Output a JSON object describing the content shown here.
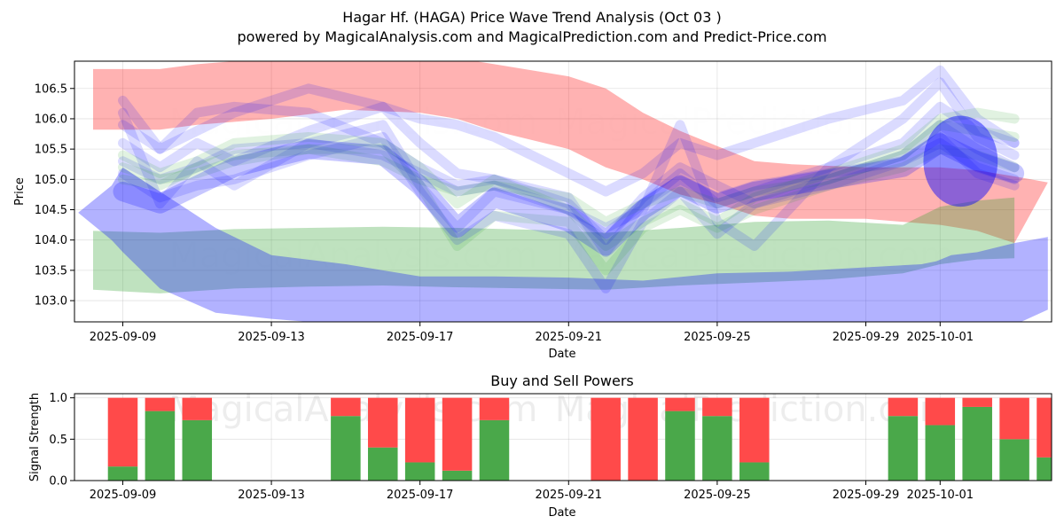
{
  "title_line1": "Hagar Hf. (HAGA) Price Wave Trend Analysis (Oct 03 )",
  "title_line2": "powered by MagicalAnalysis.com and MagicalPrediction.com and Predict-Price.com",
  "watermarks": [
    "MagicalAnalysis.com",
    "MagicalPrediction.com"
  ],
  "colors": {
    "green": "#2ca02c",
    "red": "#ff0000",
    "blue": "#0000ff",
    "buy": "#4aa84a",
    "sell": "#ff4a4a"
  },
  "chart_data": [
    {
      "type": "area",
      "title": "",
      "xlabel": "Date",
      "ylabel": "Price",
      "ylim": [
        102.65,
        106.95
      ],
      "xlim": [
        -1.3,
        25.0
      ],
      "x_tick_labels": [
        "2025-09-09",
        "2025-09-13",
        "2025-09-17",
        "2025-09-21",
        "2025-09-25",
        "2025-09-29",
        "2025-10-01"
      ],
      "x_tick_positions": [
        0,
        4,
        8,
        12,
        16,
        20,
        22
      ],
      "y_tick_labels": [
        "103.0",
        "103.5",
        "104.0",
        "104.5",
        "105.0",
        "105.5",
        "106.0",
        "106.5"
      ],
      "y_ticks": [
        103.0,
        103.5,
        104.0,
        104.5,
        105.0,
        105.5,
        106.0,
        106.5
      ],
      "grid": true,
      "bands": [
        {
          "name": "red-wave",
          "color": "red",
          "opacity": 0.3,
          "x": [
            -0.8,
            1,
            2,
            4,
            6,
            8,
            9,
            10,
            12,
            13,
            14,
            15,
            16,
            17,
            18,
            20,
            22,
            23.0,
            24.0,
            24.9
          ],
          "upper": [
            106.82,
            106.82,
            106.9,
            107.0,
            107.0,
            107.0,
            107.0,
            106.9,
            106.7,
            106.5,
            106.1,
            105.8,
            105.55,
            105.3,
            105.25,
            105.2,
            105.2,
            105.15,
            105.05,
            104.95
          ],
          "lower": [
            105.82,
            105.82,
            105.9,
            106.0,
            106.15,
            106.1,
            106.0,
            105.8,
            105.5,
            105.2,
            105.0,
            104.75,
            104.6,
            104.4,
            104.35,
            104.35,
            104.25,
            104.15,
            103.95,
            null
          ]
        },
        {
          "name": "green-wave",
          "color": "green",
          "opacity": 0.3,
          "x": [
            -0.8,
            1,
            3,
            5,
            7,
            9,
            11,
            13,
            15,
            17,
            19,
            21,
            22,
            23,
            24
          ],
          "upper": [
            104.15,
            104.12,
            104.18,
            104.2,
            104.22,
            104.2,
            104.17,
            104.12,
            104.2,
            104.3,
            104.32,
            104.25,
            104.55,
            104.65,
            104.7
          ],
          "lower": [
            103.18,
            103.12,
            103.2,
            103.23,
            103.25,
            103.22,
            103.2,
            103.18,
            103.25,
            103.3,
            103.35,
            103.45,
            103.6,
            103.68,
            103.7
          ]
        },
        {
          "name": "blue-wave",
          "color": "blue",
          "opacity": 0.3,
          "x": [
            -1.2,
            -0.3,
            0.0,
            1.0,
            2.5,
            4.0,
            6.0,
            8.0,
            10.0,
            12.0,
            14.0,
            16.0,
            18.0,
            20.0,
            21.5,
            21.9,
            22.3,
            23.0,
            24.0,
            24.9
          ],
          "upper": [
            104.45,
            104.9,
            105.2,
            104.8,
            104.2,
            103.75,
            103.6,
            103.4,
            103.4,
            103.38,
            103.33,
            103.45,
            103.48,
            103.55,
            103.6,
            103.65,
            103.75,
            103.8,
            103.95,
            104.05
          ],
          "lower": [
            104.45,
            104.0,
            103.8,
            103.2,
            102.8,
            102.7,
            102.6,
            102.6,
            102.6,
            102.6,
            102.6,
            102.6,
            102.6,
            102.6,
            102.6,
            102.6,
            102.6,
            102.6,
            102.6,
            102.85
          ]
        }
      ],
      "lines": [
        {
          "color": "blue",
          "width": 11,
          "opacity": 0.14,
          "x": [
            0,
            1,
            2,
            3,
            5,
            7,
            8,
            9,
            10,
            12,
            13,
            14,
            15,
            16,
            17,
            19,
            21,
            22,
            23,
            24
          ],
          "y": [
            106.3,
            105.5,
            105.8,
            106.1,
            106.5,
            106.2,
            106.0,
            105.9,
            105.7,
            105.1,
            104.8,
            105.1,
            105.6,
            105.4,
            105.6,
            106.0,
            106.3,
            106.8,
            106.0,
            105.6
          ]
        },
        {
          "color": "blue",
          "width": 11,
          "opacity": 0.14,
          "x": [
            0,
            1,
            2,
            3,
            5,
            7,
            8,
            9,
            10,
            12,
            13,
            14,
            15,
            16,
            17,
            19,
            21,
            22,
            23,
            24
          ],
          "y": [
            106.1,
            104.6,
            105.3,
            104.9,
            105.6,
            105.9,
            104.9,
            104.2,
            104.8,
            104.5,
            104.2,
            104.5,
            105.9,
            104.3,
            103.9,
            105.2,
            106.0,
            106.6,
            105.7,
            105.4
          ]
        },
        {
          "color": "blue",
          "width": 11,
          "opacity": 0.14,
          "x": [
            0,
            1,
            2,
            3,
            5,
            7,
            8,
            9,
            10,
            12,
            13,
            14,
            15,
            16,
            17,
            19,
            21,
            22,
            23,
            24
          ],
          "y": [
            105.6,
            105.2,
            105.6,
            105.3,
            105.8,
            106.2,
            105.6,
            105.1,
            105.0,
            104.6,
            104.0,
            104.7,
            105.2,
            104.9,
            104.6,
            104.9,
            105.3,
            105.7,
            105.1,
            104.9
          ]
        },
        {
          "color": "blue",
          "width": 11,
          "opacity": 0.14,
          "x": [
            0,
            1,
            2,
            3,
            5,
            7,
            8,
            9,
            10,
            12,
            13,
            14,
            15,
            16,
            17,
            19,
            21,
            22,
            23,
            24
          ],
          "y": [
            105.3,
            105.0,
            105.2,
            105.5,
            105.6,
            105.4,
            105.1,
            104.8,
            104.9,
            104.5,
            104.1,
            104.6,
            105.0,
            104.7,
            104.9,
            105.1,
            105.3,
            105.6,
            105.2,
            105.0
          ]
        },
        {
          "color": "blue",
          "width": 11,
          "opacity": 0.14,
          "x": [
            0,
            1,
            2,
            3,
            5,
            7,
            8,
            9,
            10,
            12,
            13,
            14,
            15,
            16,
            17,
            19,
            21,
            22,
            23,
            24
          ],
          "y": [
            105.1,
            104.7,
            104.9,
            105.0,
            105.4,
            105.7,
            104.8,
            104.0,
            104.4,
            104.1,
            103.2,
            104.3,
            104.8,
            104.1,
            104.6,
            105.0,
            105.4,
            105.9,
            105.5,
            105.2
          ]
        },
        {
          "color": "blue",
          "width": 11,
          "opacity": 0.14,
          "x": [
            0,
            1,
            2,
            3,
            5,
            7,
            8,
            9,
            10,
            12,
            13,
            14,
            15,
            16,
            17,
            19,
            21,
            22,
            23,
            24
          ],
          "y": [
            105.9,
            105.5,
            106.1,
            106.2,
            106.1,
            105.6,
            105.2,
            104.9,
            105.0,
            104.7,
            103.8,
            104.6,
            105.1,
            104.6,
            104.8,
            105.2,
            105.6,
            106.2,
            105.8,
            105.6
          ]
        },
        {
          "color": "green",
          "width": 11,
          "opacity": 0.14,
          "x": [
            0,
            1,
            2,
            3,
            5,
            7,
            8,
            9,
            10,
            12,
            13,
            14,
            15,
            16,
            17,
            19,
            21,
            22,
            23,
            24
          ],
          "y": [
            105.2,
            105.0,
            105.1,
            105.3,
            105.5,
            105.3,
            105.0,
            104.8,
            104.9,
            104.7,
            104.3,
            104.6,
            104.8,
            104.6,
            104.8,
            105.0,
            105.4,
            105.9,
            105.8,
            105.7
          ]
        },
        {
          "color": "green",
          "width": 11,
          "opacity": 0.14,
          "x": [
            0,
            1,
            2,
            3,
            5,
            7,
            8,
            9,
            10,
            12,
            13,
            14,
            15,
            16,
            17,
            19,
            21,
            22,
            23,
            24
          ],
          "y": [
            105.4,
            105.1,
            105.3,
            105.6,
            105.7,
            105.6,
            105.2,
            104.6,
            105.0,
            104.5,
            103.9,
            104.3,
            104.6,
            104.3,
            104.7,
            105.1,
            105.5,
            106.0,
            106.1,
            106.0
          ]
        },
        {
          "color": "green",
          "width": 11,
          "opacity": 0.14,
          "x": [
            0,
            1,
            2,
            3,
            5,
            7,
            8,
            9,
            10,
            12,
            13,
            14,
            15,
            16,
            17,
            19,
            21,
            22,
            23,
            24
          ],
          "y": [
            105.0,
            104.9,
            105.2,
            105.4,
            105.5,
            105.5,
            104.9,
            103.9,
            104.4,
            104.3,
            103.5,
            104.2,
            104.5,
            104.2,
            104.5,
            104.9,
            105.2,
            105.5,
            105.4,
            105.2
          ]
        },
        {
          "color": "blue",
          "width": 22,
          "opacity": 0.22,
          "x": [
            0,
            1,
            2,
            3,
            5,
            7,
            8,
            9,
            10,
            12,
            13,
            14,
            15,
            16,
            17,
            19,
            21,
            22,
            23,
            24
          ],
          "y": [
            104.8,
            104.6,
            104.9,
            105.2,
            105.5,
            105.4,
            104.9,
            104.2,
            104.7,
            104.3,
            103.9,
            104.5,
            104.9,
            104.6,
            104.8,
            105.0,
            105.2,
            105.6,
            105.3,
            105.1
          ]
        }
      ],
      "blobs": [
        {
          "color": "blue",
          "opacity": 0.45,
          "cx": 22.55,
          "cy": 105.3,
          "rx": 1.0,
          "ry": 0.75
        }
      ]
    },
    {
      "type": "bar",
      "title": "Buy and Sell Powers",
      "xlabel": "Date",
      "ylabel": "Signal Strength",
      "ylim": [
        0,
        1.05
      ],
      "xlim": [
        -1.3,
        25.0
      ],
      "x_tick_labels": [
        "2025-09-09",
        "2025-09-13",
        "2025-09-17",
        "2025-09-21",
        "2025-09-25",
        "2025-09-29",
        "2025-10-01"
      ],
      "x_tick_positions": [
        0,
        4,
        8,
        12,
        16,
        20,
        22
      ],
      "y_tick_labels": [
        "0.0",
        "0.5",
        "1.0"
      ],
      "y_ticks": [
        0.0,
        0.5,
        1.0
      ],
      "grid": true,
      "dates": [
        "2025-09-09",
        "2025-09-10",
        "2025-09-11",
        "2025-09-12",
        "2025-09-15",
        "2025-09-16",
        "2025-09-17",
        "2025-09-18",
        "2025-09-19",
        "2025-09-22",
        "2025-09-23",
        "2025-09-24",
        "2025-09-25",
        "2025-09-26",
        "2025-09-30",
        "2025-10-01",
        "2025-10-02",
        "2025-10-03",
        "2025-10-04"
      ],
      "positions": [
        0,
        1,
        2,
        3,
        6,
        7,
        8,
        9,
        10,
        13,
        14,
        15,
        16,
        17,
        21,
        22,
        23,
        24,
        25
      ],
      "series": [
        {
          "name": "buy",
          "color": "buy",
          "values": [
            0.17,
            0.84,
            0.73,
            0,
            0.78,
            0.4,
            0.22,
            0.12,
            0.73,
            0,
            0,
            0.84,
            0.78,
            0.22,
            0.78,
            0.67,
            0.89,
            0.5,
            0.28
          ]
        },
        {
          "name": "sell",
          "color": "sell",
          "values": [
            0.83,
            0.16,
            0.27,
            0,
            0.22,
            0.6,
            0.78,
            0.88,
            0.27,
            1.0,
            1.0,
            0.16,
            0.22,
            0.78,
            0.22,
            0.33,
            0.11,
            0.5,
            0.72
          ]
        }
      ]
    }
  ]
}
